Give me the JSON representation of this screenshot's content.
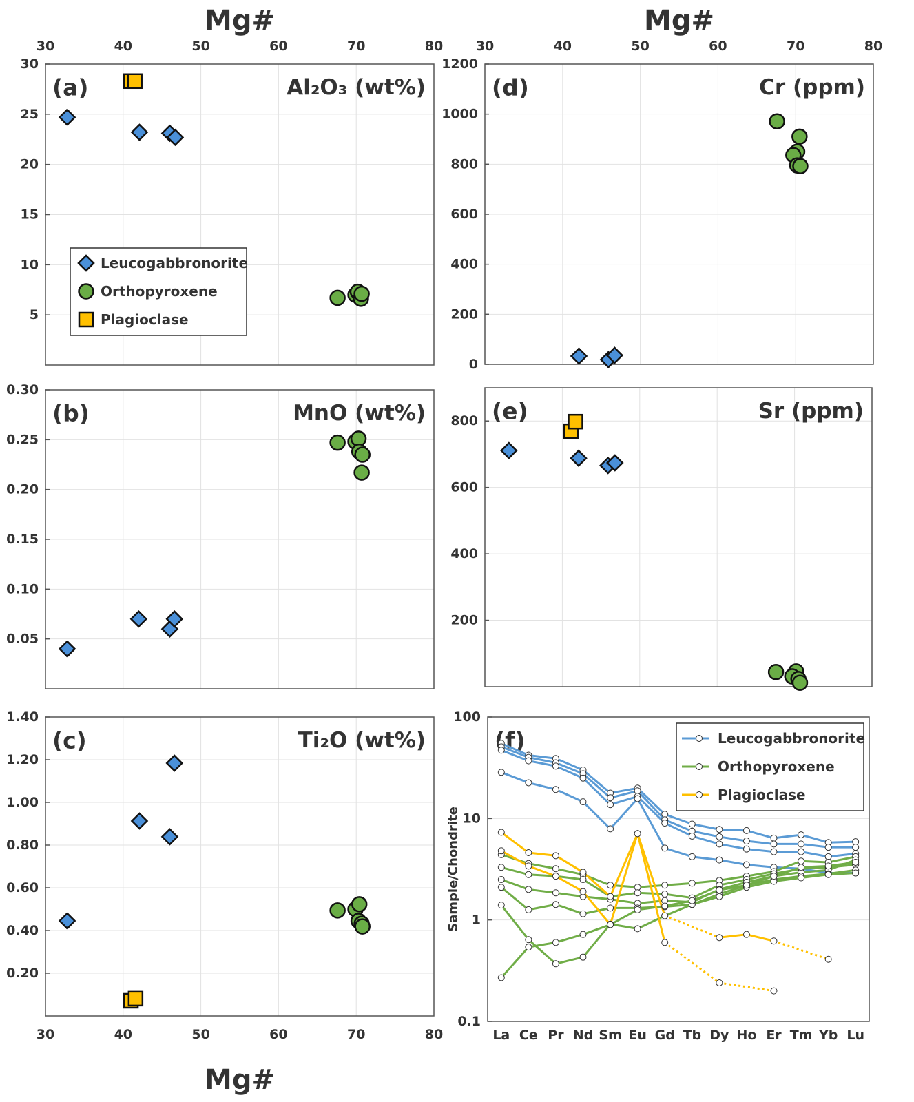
{
  "chart_data": [
    {
      "type": "scatter",
      "panel_label": "(a)",
      "title": "Al₂O₃ (wt%)",
      "xlabel": "Mg#",
      "xtick_labels": "top",
      "xlim": [
        30,
        80
      ],
      "xticks": [
        30,
        40,
        50,
        60,
        70,
        80
      ],
      "ylim": [
        0,
        30
      ],
      "yticks": [
        5,
        10,
        15,
        20,
        25,
        30
      ],
      "grid": true,
      "legend": "center left",
      "series": [
        {
          "name": "Leucogabbronorite",
          "color": "#4a90d9",
          "marker": "diamond",
          "x": [
            32.8,
            42.1,
            46.0,
            46.7
          ],
          "values": [
            24.7,
            23.2,
            23.1,
            22.7
          ]
        },
        {
          "name": "Orthopyroxene",
          "color": "#6aad46",
          "marker": "circle",
          "x": [
            67.6,
            69.9,
            70.2,
            70.6,
            70.7
          ],
          "values": [
            6.7,
            7.0,
            7.3,
            6.6,
            7.1
          ]
        },
        {
          "name": "Plagioclase",
          "color": "#ffc000",
          "marker": "square",
          "x": [
            41.0,
            41.5
          ],
          "values": [
            28.3,
            28.3
          ]
        }
      ]
    },
    {
      "type": "scatter",
      "panel_label": "(d)",
      "title": "Cr (ppm)",
      "xlabel": "Mg#",
      "xtick_labels": "top",
      "xlim": [
        30,
        80
      ],
      "xticks": [
        30,
        40,
        50,
        60,
        70,
        80
      ],
      "ylim": [
        0,
        1200
      ],
      "yticks": [
        0,
        200,
        400,
        600,
        800,
        1000,
        1200
      ],
      "grid": true,
      "series": [
        {
          "color": "#4a90d9",
          "marker": "diamond",
          "x": [
            42.1,
            45.9,
            46.7
          ],
          "values": [
            33,
            19,
            36
          ]
        },
        {
          "color": "#6aad46",
          "marker": "circle",
          "x": [
            67.6,
            70.5,
            70.2,
            69.7,
            70.2,
            70.6
          ],
          "values": [
            971,
            910,
            850,
            836,
            795,
            792
          ]
        }
      ]
    },
    {
      "type": "scatter",
      "panel_label": "(b)",
      "title": "MnO (wt%)",
      "xtick_labels": "none",
      "xlim": [
        30,
        80
      ],
      "xticks": [
        30,
        40,
        50,
        60,
        70,
        80
      ],
      "ylim": [
        0,
        0.3
      ],
      "yticks": [
        0.05,
        {
          "value": 0.1,
          "label": "0.10"
        },
        0.15,
        {
          "value": 0.2,
          "label": "0.20"
        },
        0.25,
        {
          "value": 0.3,
          "label": "0.30"
        }
      ],
      "grid": true,
      "series": [
        {
          "color": "#4a90d9",
          "marker": "diamond",
          "x": [
            32.8,
            42.0,
            46.0,
            46.6
          ],
          "values": [
            0.04,
            0.07,
            0.06,
            0.07
          ]
        },
        {
          "color": "#6aad46",
          "marker": "circle",
          "x": [
            67.6,
            69.9,
            70.3,
            70.4,
            70.8,
            70.7
          ],
          "values": [
            0.247,
            0.248,
            0.251,
            0.238,
            0.235,
            0.217
          ]
        }
      ]
    },
    {
      "type": "scatter",
      "panel_label": "(e)",
      "title": "Sr (ppm)",
      "xtick_labels": "none",
      "xlim": [
        30,
        80
      ],
      "xticks": [
        30,
        40,
        50,
        60,
        70,
        80
      ],
      "ylim": [
        0,
        900
      ],
      "yticks": [
        200,
        400,
        600,
        800
      ],
      "grid": true,
      "series": [
        {
          "color": "#4a90d9",
          "marker": "diamond",
          "x": [
            33.1,
            42.1,
            45.9,
            46.8
          ],
          "values": [
            711,
            688,
            666,
            674
          ]
        },
        {
          "color": "#ffc000",
          "marker": "square",
          "x": [
            41.1,
            41.7
          ],
          "values": [
            769,
            798
          ]
        },
        {
          "color": "#6aad46",
          "marker": "circle",
          "x": [
            67.6,
            70.2,
            69.7,
            70.5,
            70.7
          ],
          "values": [
            44,
            46,
            31,
            23,
            12
          ]
        }
      ]
    },
    {
      "type": "scatter",
      "panel_label": "(c)",
      "title": "Ti₂O (wt%)",
      "xlabel": "Mg#",
      "xtick_labels": "bottom",
      "xlim": [
        30,
        80
      ],
      "xticks": [
        30,
        40,
        50,
        60,
        70,
        80
      ],
      "ylim": [
        0,
        1.4
      ],
      "yticks": [
        {
          "value": 0.2,
          "label": "0.20"
        },
        {
          "value": 0.4,
          "label": "0.40"
        },
        {
          "value": 0.6,
          "label": "0.60"
        },
        {
          "value": 0.8,
          "label": "0.80"
        },
        {
          "value": 1,
          "label": "1.00"
        },
        {
          "value": 1.2,
          "label": "1.20"
        },
        {
          "value": 1.4,
          "label": "1.40"
        }
      ],
      "grid": true,
      "series": [
        {
          "color": "#4a90d9",
          "marker": "diamond",
          "x": [
            32.8,
            42.1,
            46.0,
            46.6
          ],
          "values": [
            0.445,
            0.913,
            0.839,
            1.184
          ]
        },
        {
          "color": "#6aad46",
          "marker": "circle",
          "x": [
            67.6,
            69.9,
            70.4,
            70.3,
            70.7,
            70.8
          ],
          "values": [
            0.494,
            0.5,
            0.523,
            0.445,
            0.432,
            0.419
          ]
        },
        {
          "color": "#ffc000",
          "marker": "square",
          "x": [
            41.0,
            41.6
          ],
          "values": [
            0.071,
            0.081
          ]
        }
      ]
    },
    {
      "type": "line",
      "panel_label": "(f)",
      "ylabel": "Sample/Chondrite",
      "categories": [
        "La",
        "Ce",
        "Pr",
        "Nd",
        "Sm",
        "Eu",
        "Gd",
        "Tb",
        "Dy",
        "Ho",
        "Er",
        "Tm",
        "Yb",
        "Lu"
      ],
      "log_y": true,
      "ylim": [
        0.1,
        100
      ],
      "yticks": [
        0.1,
        1,
        10,
        100
      ],
      "grid": true,
      "legend": "upper right",
      "series": [
        {
          "name": "Leucogabbronorite",
          "color": "#5b9bd5",
          "samples": [
            [
              55,
              42,
              39,
              30,
              17.8,
              19.9,
              11,
              8.8,
              7.8,
              7.6,
              6.4,
              6.9,
              5.8,
              5.9
            ],
            [
              50.8,
              40,
              35.4,
              27.6,
              16,
              18.7,
              9.7,
              7.5,
              6.6,
              6.0,
              5.6,
              5.6,
              5.2,
              5.2
            ],
            [
              47,
              37,
              32.8,
              25,
              13.7,
              16.5,
              9,
              6.7,
              5.6,
              5.0,
              4.7,
              4.7,
              4.2,
              4.5
            ],
            [
              28.5,
              22.5,
              19.3,
              14.6,
              7.9,
              15.7,
              5.1,
              4.2,
              3.9,
              3.5,
              3.3,
              3.2,
              2.9,
              2.9
            ]
          ]
        },
        {
          "name": "Orthopyroxene",
          "color": "#70ad47",
          "samples": [
            [
              4.4,
              3.6,
              3.2,
              2.8,
              2.2,
              2.1,
              2.2,
              2.3,
              2.45,
              2.7,
              3.0,
              3.8,
              3.7,
              4.2
            ],
            [
              3.3,
              2.8,
              2.7,
              2.5,
              1.7,
              1.85,
              1.8,
              1.65,
              2.2,
              2.5,
              2.85,
              3.2,
              3.3,
              3.5
            ],
            [
              2.5,
              2.0,
              1.85,
              1.7,
              1.6,
              1.46,
              1.55,
              1.5,
              2.0,
              2.35,
              2.7,
              2.95,
              3.1,
              3.9
            ],
            [
              2.1,
              1.26,
              1.42,
              1.15,
              1.31,
              1.31,
              1.35,
              1.42,
              1.8,
              2.2,
              2.5,
              2.7,
              2.85,
              3.1
            ],
            [
              1.4,
              0.64,
              0.37,
              0.43,
              0.91,
              0.82,
              1.1,
              1.42,
              1.7,
              2.1,
              2.4,
              2.6,
              2.8,
              2.9
            ],
            [
              0.27,
              0.54,
              0.6,
              0.72,
              0.9,
              1.26,
              1.37,
              1.55,
              1.97,
              2.2,
              2.7,
              3.3,
              3.4,
              3.7
            ]
          ]
        },
        {
          "name": "Plagioclase",
          "color": "#ffc000",
          "samples": [
            [
              7.3,
              4.6,
              4.3,
              2.95,
              1.7,
              7.1,
              1.1,
              null,
              0.67,
              0.72,
              0.62,
              null,
              0.41,
              null
            ],
            [
              4.8,
              3.4,
              2.7,
              1.9,
              0.9,
              7.1,
              0.6,
              null,
              0.24,
              null,
              0.2,
              null,
              null,
              null
            ]
          ]
        }
      ]
    }
  ]
}
